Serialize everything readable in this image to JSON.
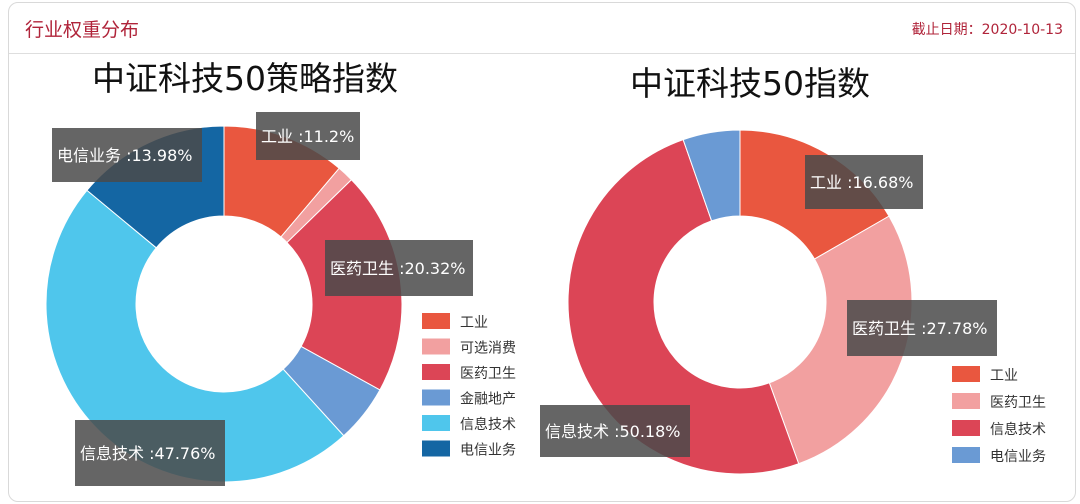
{
  "header": {
    "title": "行业权重分布",
    "date_label": "截止日期：2020-10-13"
  },
  "chart_data": [
    {
      "type": "pie",
      "title": "中证科技50策略指数",
      "slices": [
        {
          "name": "工业",
          "value": 11.2,
          "color": "#e9573f",
          "label": "工业 :11.2%"
        },
        {
          "name": "可选消费",
          "value": 1.5,
          "color": "#f2a0a0",
          "label": ""
        },
        {
          "name": "医药卫生",
          "value": 20.32,
          "color": "#dc4556",
          "label": "医药卫生 :20.32%"
        },
        {
          "name": "金融地产",
          "value": 5.24,
          "color": "#6a9ad4",
          "label": ""
        },
        {
          "name": "信息技术",
          "value": 47.76,
          "color": "#4fc6ec",
          "label": "信息技术 :47.76%"
        },
        {
          "name": "电信业务",
          "value": 13.98,
          "color": "#1466a3",
          "label": "电信业务 :13.98%"
        }
      ]
    },
    {
      "type": "pie",
      "title": "中证科技50指数",
      "slices": [
        {
          "name": "工业",
          "value": 16.68,
          "color": "#e9573f",
          "label": "工业 :16.68%"
        },
        {
          "name": "医药卫生",
          "value": 27.78,
          "color": "#f2a0a0",
          "label": "医药卫生 :27.78%"
        },
        {
          "name": "信息技术",
          "value": 50.18,
          "color": "#dc4556",
          "label": "信息技术 :50.18%"
        },
        {
          "name": "电信业务",
          "value": 5.36,
          "color": "#6a9ad4",
          "label": ""
        }
      ]
    }
  ]
}
